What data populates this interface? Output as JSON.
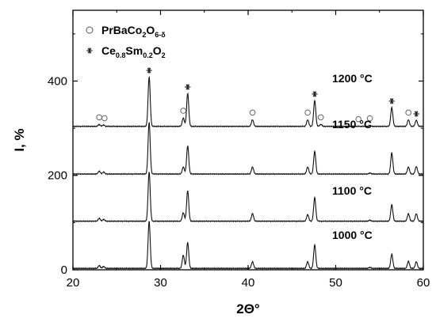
{
  "chart_data": {
    "type": "line",
    "xlabel": "2Θ°",
    "ylabel": "I, %",
    "xlim": [
      20,
      60
    ],
    "ylim": [
      0,
      550
    ],
    "xticks": [
      20,
      30,
      40,
      50,
      60
    ],
    "yticks": [
      0,
      200,
      400
    ],
    "grid": false,
    "legend_placement": "top-left",
    "legend": [
      {
        "marker": "open-circle",
        "label": "PrBaCo",
        "sub1": "2",
        "mid": "O",
        "sub2": "6-δ"
      },
      {
        "marker": "asterisk",
        "label": "Ce",
        "sub1": "0.8",
        "mid": "Sm",
        "sub2": "0.2",
        "mid2": "O",
        "sub3": "2"
      }
    ],
    "phase_markers": {
      "PrBaCo2O6-δ": [
        23.0,
        23.6,
        32.6,
        40.5,
        46.8,
        48.3,
        52.6,
        53.9,
        58.3
      ],
      "Ce0.8Sm0.2O2": [
        28.7,
        33.1,
        47.6,
        56.4,
        59.2
      ]
    },
    "series": [
      {
        "name": "1000 °C",
        "baseline": 3,
        "peaks": [
          [
            23.0,
            6
          ],
          [
            23.5,
            4
          ],
          [
            28.7,
            100
          ],
          [
            32.6,
            28
          ],
          [
            33.1,
            55
          ],
          [
            40.5,
            14
          ],
          [
            46.8,
            14
          ],
          [
            47.6,
            50
          ],
          [
            53.9,
            2
          ],
          [
            56.4,
            30
          ],
          [
            58.3,
            15
          ],
          [
            59.2,
            14
          ]
        ]
      },
      {
        "name": "1100 °C",
        "baseline": 103,
        "peaks": [
          [
            23.0,
            6
          ],
          [
            23.5,
            4
          ],
          [
            28.7,
            105
          ],
          [
            32.6,
            18
          ],
          [
            33.1,
            65
          ],
          [
            40.5,
            16
          ],
          [
            46.8,
            14
          ],
          [
            47.6,
            50
          ],
          [
            53.9,
            2
          ],
          [
            56.4,
            35
          ],
          [
            58.3,
            16
          ],
          [
            59.2,
            16
          ]
        ]
      },
      {
        "name": "1150 °C",
        "baseline": 203,
        "peaks": [
          [
            23.0,
            6
          ],
          [
            23.5,
            4
          ],
          [
            28.7,
            110
          ],
          [
            32.6,
            15
          ],
          [
            33.1,
            60
          ],
          [
            40.5,
            15
          ],
          [
            46.8,
            15
          ],
          [
            47.6,
            48
          ],
          [
            53.9,
            2
          ],
          [
            56.4,
            45
          ],
          [
            58.3,
            15
          ],
          [
            59.2,
            16
          ]
        ]
      },
      {
        "name": "1200 °C",
        "baseline": 304,
        "peaks": [
          [
            23.0,
            4
          ],
          [
            23.5,
            3
          ],
          [
            28.7,
            105
          ],
          [
            32.6,
            18
          ],
          [
            33.1,
            70
          ],
          [
            40.5,
            14
          ],
          [
            46.8,
            14
          ],
          [
            47.6,
            55
          ],
          [
            48.3,
            4
          ],
          [
            53.9,
            2
          ],
          [
            56.4,
            40
          ],
          [
            58.3,
            14
          ],
          [
            59.2,
            13
          ]
        ]
      }
    ],
    "temperature_labels": [
      "1200 °C",
      "1150 °C",
      "1100 °C",
      "1000 °C"
    ]
  }
}
